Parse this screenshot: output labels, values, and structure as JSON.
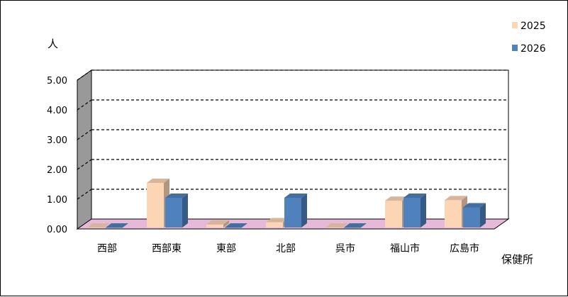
{
  "chart_data": {
    "type": "bar",
    "title": "",
    "ylabel": "人",
    "xlabel": "保健所",
    "ylim": [
      0,
      5
    ],
    "yticks": [
      "0.00",
      "1.00",
      "2.00",
      "3.00",
      "4.00",
      "5.00"
    ],
    "grid": true,
    "legend": "top-right",
    "categories": [
      "西部",
      "西部東",
      "東部",
      "北部",
      "呉市",
      "福山市",
      "広島市"
    ],
    "series": [
      {
        "name": "2025",
        "values": [
          0.0,
          1.5,
          0.1,
          0.18,
          0.0,
          0.9,
          0.92
        ],
        "color": "#FCD5B5"
      },
      {
        "name": "2026",
        "values": [
          0.0,
          1.0,
          0.0,
          1.0,
          0.0,
          1.0,
          0.68
        ],
        "color": "#4F81BD"
      }
    ]
  }
}
